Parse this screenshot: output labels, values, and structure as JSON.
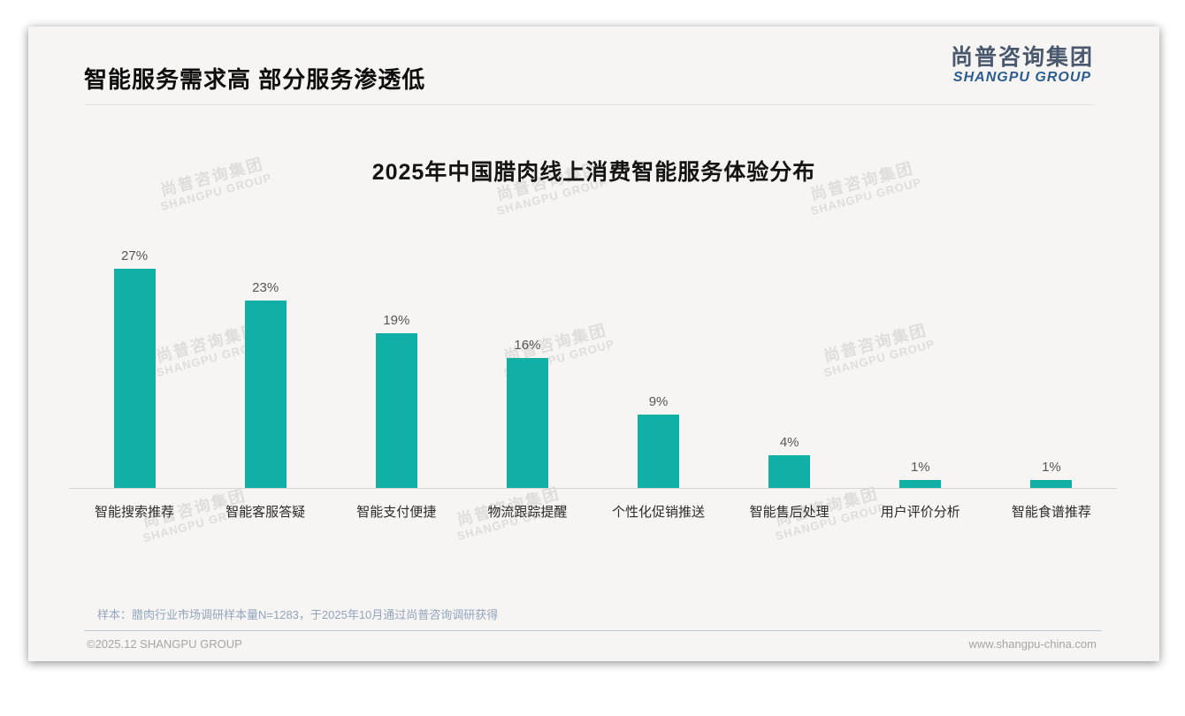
{
  "page": {
    "header": {
      "title": "智能服务需求高 部分服务渗透低"
    },
    "logo": {
      "cn": "尚普咨询集团",
      "en": "SHANGPU GROUP"
    },
    "watermark": {
      "cn": "尚普咨询集团",
      "en": "SHANGPU GROUP"
    },
    "footnote": "样本：腊肉行业市场调研样本量N=1283，于2025年10月通过尚普咨询调研获得",
    "footer": {
      "left": "©2025.12 SHANGPU GROUP",
      "right": "www.shangpu-china.com"
    }
  },
  "chart_data": {
    "type": "bar",
    "title": "2025年中国腊肉线上消费智能服务体验分布",
    "categories": [
      "智能搜索推荐",
      "智能客服答疑",
      "智能支付便捷",
      "物流跟踪提醒",
      "个性化促销推送",
      "智能售后处理",
      "用户评价分析",
      "智能食谱推荐"
    ],
    "values": [
      27,
      23,
      19,
      16,
      9,
      4,
      1,
      1
    ],
    "value_labels": [
      "27%",
      "23%",
      "19%",
      "16%",
      "9%",
      "4%",
      "1%",
      "1%"
    ],
    "unit": "%",
    "ylim": [
      0,
      30
    ],
    "grid": false,
    "legend": "none",
    "bar_color": "#10b0a6",
    "value_label_color": "#565656",
    "axis_color": "#d8d6d4"
  }
}
